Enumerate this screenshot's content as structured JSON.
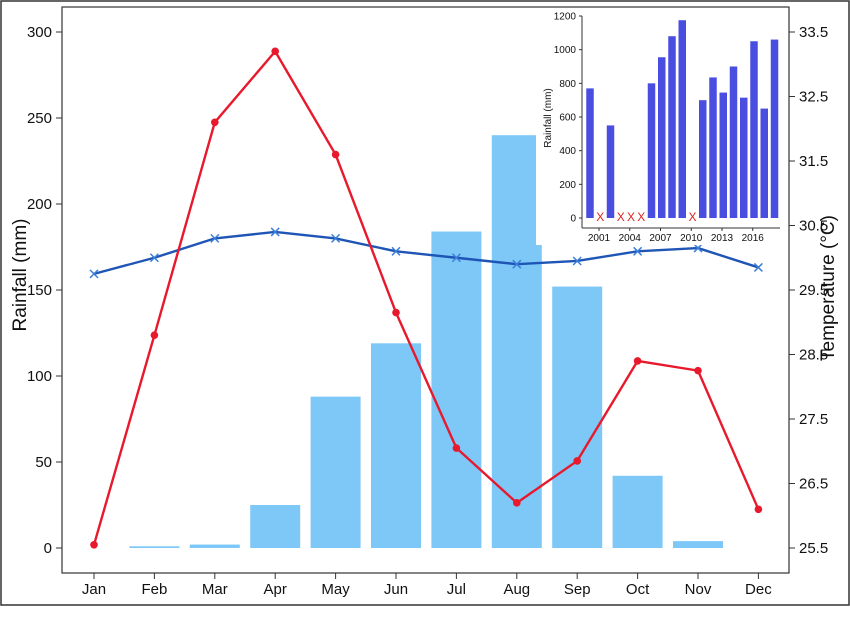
{
  "chart_data": [
    {
      "type": "bar+line",
      "categories": [
        "Jan",
        "Feb",
        "Mar",
        "Apr",
        "May",
        "Jun",
        "Jul",
        "Aug",
        "Sep",
        "Oct",
        "Nov",
        "Dec"
      ],
      "rainfall_mm": [
        0,
        1,
        2,
        25,
        88,
        119,
        184,
        240,
        152,
        42,
        4,
        0
      ],
      "red_line_temperature": [
        25.55,
        28.8,
        32.1,
        33.2,
        31.6,
        29.15,
        27.05,
        26.2,
        26.85,
        28.4,
        28.25,
        26.1
      ],
      "blue_line_temperature": [
        29.75,
        30.0,
        30.3,
        30.4,
        30.3,
        30.1,
        30.0,
        29.9,
        29.95,
        30.1,
        30.15,
        29.85
      ],
      "ylabel": "Rainfall (mm)",
      "y2label": "Temperature (°C)",
      "ylim": [
        0,
        300
      ],
      "y2lim": [
        25.5,
        33.5
      ],
      "y_ticks": [
        "0",
        "50",
        "100",
        "150",
        "200",
        "250",
        "300"
      ],
      "y2_ticks": [
        "25.5",
        "26.5",
        "27.5",
        "28.5",
        "29.5",
        "30.5",
        "31.5",
        "32.5",
        "33.5"
      ],
      "colors": {
        "bars": "#7ec8f8",
        "red_line": "#e8192c",
        "blue_line": "#1f55b5",
        "axis": "#333333"
      },
      "markers": {
        "red_line": "circle",
        "blue_line": "x"
      }
    },
    {
      "type": "bar",
      "placement": "inset-top-right",
      "years": [
        2001,
        2002,
        2003,
        2004,
        2005,
        2006,
        2007,
        2008,
        2009,
        2010,
        2011,
        2012,
        2013,
        2014,
        2015,
        2016,
        2017,
        2018,
        2019
      ],
      "values": [
        770,
        null,
        550,
        null,
        null,
        null,
        800,
        955,
        1080,
        1175,
        null,
        700,
        835,
        745,
        900,
        715,
        1050,
        650,
        1060
      ],
      "missing_marker": "X",
      "ylabel": "Rainfall (mm)",
      "ylim": [
        0,
        1200
      ],
      "y_ticks": [
        "0",
        "200",
        "400",
        "600",
        "800",
        "1000",
        "1200"
      ],
      "x_ticks": [
        "2001",
        "2004",
        "2007",
        "2010",
        "2013",
        "2016"
      ],
      "colors": {
        "bars": "#4a4ee0",
        "missing": "#dd2222"
      }
    }
  ]
}
